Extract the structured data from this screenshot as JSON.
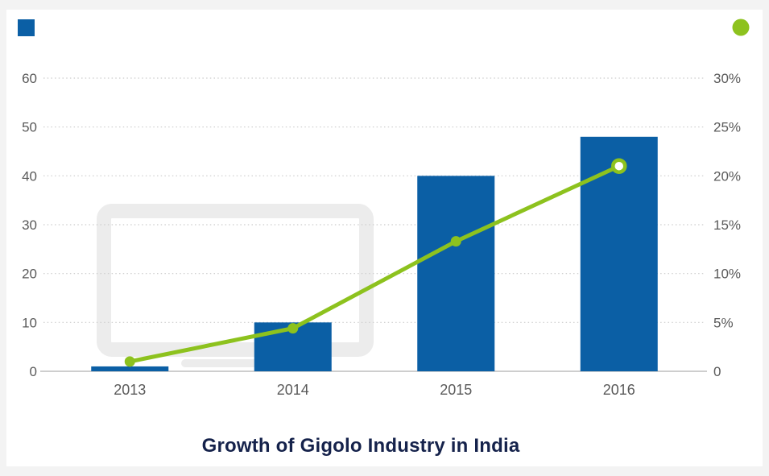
{
  "page": {
    "background": "#f3f3f3",
    "canvas_background": "#ffffff"
  },
  "legend": {
    "bar_swatch": {
      "name": "bar-series-swatch",
      "shape": "square",
      "color": "#0b5fa5"
    },
    "line_swatch": {
      "name": "line-series-swatch",
      "shape": "circle",
      "color": "#8dc21e"
    },
    "position": "top-corners"
  },
  "watermark": {
    "icon": "monitor-icon",
    "color": "#ececec"
  },
  "chart_data": {
    "type": "bar",
    "subtype": "combo-bar-line-dual-axis",
    "title": "Growth of Gigolo Industry in India",
    "title_color": "#15224b",
    "categories": [
      "2013",
      "2014",
      "2015",
      "2016"
    ],
    "series": [
      {
        "name": "bar-series",
        "type": "bar",
        "axis": "left",
        "color": "#0b5fa5",
        "values": [
          1,
          10,
          40,
          48
        ]
      },
      {
        "name": "line-series",
        "type": "line",
        "axis": "right",
        "color": "#8dc21e",
        "unit": "%",
        "values": [
          1,
          4.4,
          13.3,
          21
        ],
        "last_marker_style": "hollow"
      }
    ],
    "left_axis": {
      "range": [
        0,
        60
      ],
      "ticks": [
        0,
        10,
        20,
        30,
        40,
        50,
        60
      ],
      "labels": [
        "0",
        "10",
        "20",
        "30",
        "40",
        "50",
        "60"
      ]
    },
    "right_axis": {
      "range": [
        0,
        30
      ],
      "tick_values": [
        0,
        5,
        10,
        15,
        20,
        25,
        30
      ],
      "labels": [
        "0",
        "5%",
        "10%",
        "15%",
        "20%",
        "25%",
        "30%"
      ]
    },
    "grid": {
      "horizontal": true,
      "style": "dotted",
      "color": "#cccccc"
    },
    "baseline_color": "#bdbdbd",
    "axis_label_color": "#5a5a5a",
    "legend_position": "top-corners"
  }
}
